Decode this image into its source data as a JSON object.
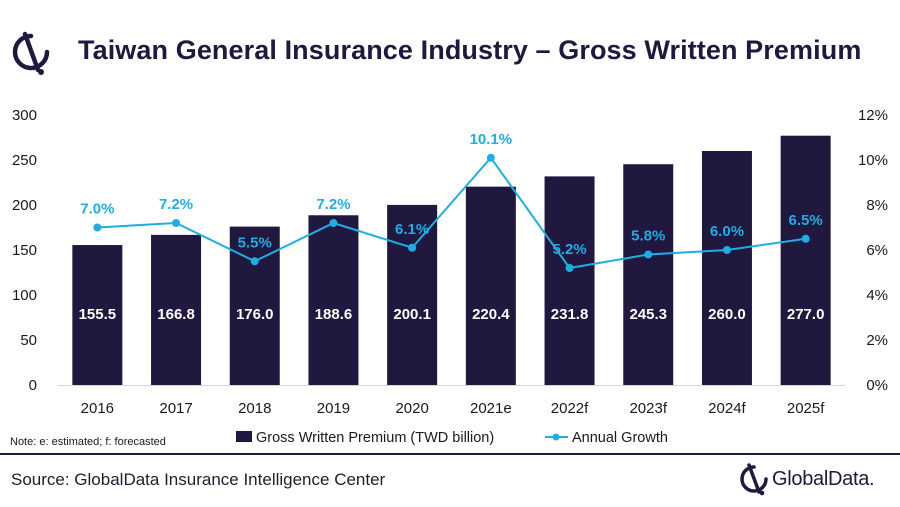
{
  "header": {
    "title": "Taiwan General Insurance Industry – Gross Written Premium",
    "logo_icon": "globaldata-icon"
  },
  "footer": {
    "source": "Source: GlobalData Insurance Intelligence Center",
    "brand_name": "GlobalData."
  },
  "colors": {
    "bar": "#20183f",
    "line": "#1eaee3",
    "text_dark": "#1a1a1a",
    "rule": "#20183f"
  },
  "chart_data": {
    "type": "bar",
    "categories": [
      "2016",
      "2017",
      "2018",
      "2019",
      "2020",
      "2021e",
      "2022f",
      "2023f",
      "2024f",
      "2025f"
    ],
    "series": [
      {
        "name": "Gross Written Premium (TWD billion)",
        "type": "bar",
        "axis": "left",
        "values": [
          155.5,
          166.8,
          176.0,
          188.6,
          200.1,
          220.4,
          231.8,
          245.3,
          260.0,
          277.0
        ],
        "labels": [
          "155.5",
          "166.8",
          "176.0",
          "188.6",
          "200.1",
          "220.4",
          "231.8",
          "245.3",
          "260.0",
          "277.0"
        ]
      },
      {
        "name": "Annual Growth",
        "type": "line",
        "axis": "right",
        "values": [
          7.0,
          7.2,
          5.5,
          7.2,
          6.1,
          10.1,
          5.2,
          5.8,
          6.0,
          6.5
        ],
        "labels": [
          "7.0%",
          "7.2%",
          "5.5%",
          "7.2%",
          "6.1%",
          "10.1%",
          "5.2%",
          "5.8%",
          "6.0%",
          "6.5%"
        ]
      }
    ],
    "y_left": {
      "ylim": [
        0,
        300
      ],
      "ticks": [
        "0",
        "50",
        "100",
        "150",
        "200",
        "250",
        "300"
      ]
    },
    "y_right": {
      "ylim": [
        0,
        12
      ],
      "ticks": [
        "0%",
        "2%",
        "4%",
        "6%",
        "8%",
        "10%",
        "12%"
      ]
    },
    "grid": false,
    "legend_position": "bottom",
    "note": "Note: e: estimated; f: forecasted"
  }
}
